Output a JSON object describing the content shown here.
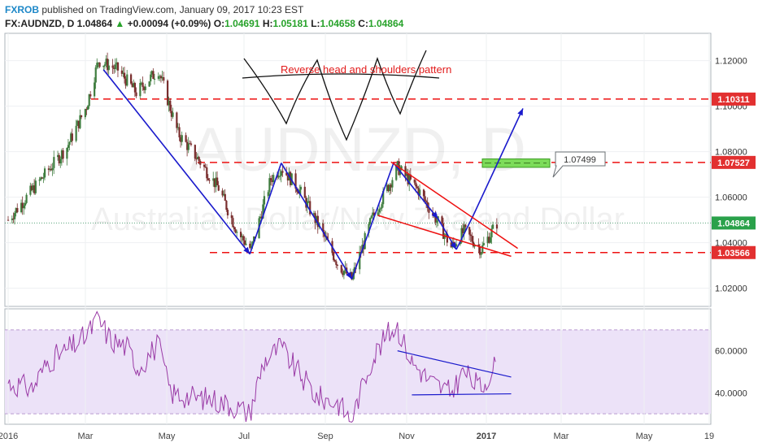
{
  "header": {
    "author": "FXROB",
    "published_text": "published on TradingView.com, January 09, 2017 10:23 EST",
    "symbol": "FX:AUDNZD, D",
    "last": "1.04864",
    "arrow": "▲",
    "change": "+0.00094 (+0.09%)",
    "o_label": "O:",
    "o_value": "1.04691",
    "h_label": "H:",
    "h_value": "1.05181",
    "l_label": "L:",
    "l_value": "1.04658",
    "c_label": "C:",
    "c_value": "1.04864"
  },
  "watermark": {
    "symbol": "AUDNZD, D",
    "name": "Australian Dollar/New Zealand Dollar"
  },
  "annotations": {
    "pattern_text": "Reverse head and  shoulders pattern",
    "target_callout": "1.07499"
  },
  "colors": {
    "bull": "#3f7d3f",
    "bear": "#7a2e2e",
    "trend": "#1a1acc",
    "level": "#ee1111",
    "wedge": "#ee1111",
    "rsi_line": "#9a3aa6",
    "rsi_band": "#ece2f8",
    "target_box": "#7ddc5a"
  },
  "chart_data": [
    {
      "type": "candlestick",
      "title": "FX:AUDNZD, D",
      "x_ticks": [
        "2016",
        "Mar",
        "May",
        "Jul",
        "Sep",
        "Nov",
        "2017",
        "Mar",
        "May",
        "19"
      ],
      "y_ticks": [
        "1.12000",
        "1.10000",
        "1.08000",
        "1.06000",
        "1.04000",
        "1.02000"
      ],
      "ylim": [
        1.012,
        1.132
      ],
      "grid": true,
      "price_labels": [
        {
          "value": 1.10311,
          "text": "1.10311",
          "kind": "level"
        },
        {
          "value": 1.07527,
          "text": "1.07527",
          "kind": "level"
        },
        {
          "value": 1.04864,
          "text": "1.04864",
          "kind": "last"
        },
        {
          "value": 1.03566,
          "text": "1.03566",
          "kind": "level"
        }
      ],
      "horizontal_levels": [
        1.10311,
        1.07527,
        1.03566
      ],
      "last_price": 1.04864,
      "target_zone": [
        1.0731,
        1.0768
      ],
      "path_points": [
        [
          "2016-01-01",
          1.05
        ],
        [
          "2016-01-15",
          1.06
        ],
        [
          "2016-02-01",
          1.072
        ],
        [
          "2016-02-15",
          1.082
        ],
        [
          "2016-03-01",
          1.1
        ],
        [
          "2016-03-10",
          1.12
        ],
        [
          "2016-03-25",
          1.116
        ],
        [
          "2016-04-08",
          1.106
        ],
        [
          "2016-04-25",
          1.116
        ],
        [
          "2016-05-10",
          1.088
        ],
        [
          "2016-05-25",
          1.077
        ],
        [
          "2016-06-10",
          1.064
        ],
        [
          "2016-06-25",
          1.044
        ],
        [
          "2016-07-05",
          1.037
        ],
        [
          "2016-07-20",
          1.068
        ],
        [
          "2016-07-28",
          1.073
        ],
        [
          "2016-08-10",
          1.064
        ],
        [
          "2016-08-25",
          1.048
        ],
        [
          "2016-09-10",
          1.03
        ],
        [
          "2016-09-20",
          1.024
        ],
        [
          "2016-10-05",
          1.05
        ],
        [
          "2016-10-25",
          1.073
        ],
        [
          "2016-11-10",
          1.063
        ],
        [
          "2016-11-25",
          1.049
        ],
        [
          "2016-12-05",
          1.038
        ],
        [
          "2016-12-15",
          1.045
        ],
        [
          "2016-12-28",
          1.037
        ],
        [
          "2017-01-09",
          1.0486
        ]
      ],
      "trend_lines": [
        {
          "from": [
            "2016-03-14",
            1.116
          ],
          "to": [
            "2016-07-04",
            1.035
          ],
          "color": "blue"
        },
        {
          "from": [
            "2016-07-04",
            1.035
          ],
          "to": [
            "2016-07-28",
            1.075
          ],
          "color": "blue"
        },
        {
          "from": [
            "2016-07-28",
            1.075
          ],
          "to": [
            "2016-09-20",
            1.024
          ],
          "color": "blue"
        },
        {
          "from": [
            "2016-09-20",
            1.024
          ],
          "to": [
            "2016-10-22",
            1.075
          ],
          "color": "blue"
        },
        {
          "from": [
            "2016-10-22",
            1.075
          ],
          "to": [
            "2016-11-25",
            1.0505
          ],
          "color": "blue"
        },
        {
          "from": [
            "2016-11-25",
            1.0505
          ],
          "to": [
            "2016-12-09",
            1.037
          ],
          "color": "blue"
        },
        {
          "from": [
            "2016-12-09",
            1.037
          ],
          "to": [
            "2016-12-22",
            1.052
          ],
          "color": "blue"
        },
        {
          "from": [
            "2016-12-22",
            1.052
          ],
          "to": [
            "2017-01-29",
            1.099
          ],
          "color": "blue"
        }
      ],
      "wedge_lines": [
        {
          "from": [
            "2016-10-20",
            1.0755
          ],
          "to": [
            "2017-01-25",
            1.0375
          ],
          "color": "red"
        },
        {
          "from": [
            "2016-10-10",
            1.052
          ],
          "to": [
            "2017-01-20",
            1.034
          ],
          "color": "red"
        }
      ]
    },
    {
      "type": "line",
      "title": "RSI",
      "y_ticks": [
        "60.0000",
        "40.0000"
      ],
      "ylim": [
        25,
        80
      ],
      "band": [
        30,
        70
      ],
      "points": [
        [
          "2016-01-01",
          45
        ],
        [
          "2016-01-20",
          42
        ],
        [
          "2016-02-01",
          55
        ],
        [
          "2016-02-15",
          60
        ],
        [
          "2016-03-01",
          67
        ],
        [
          "2016-03-10",
          75
        ],
        [
          "2016-03-20",
          65
        ],
        [
          "2016-04-01",
          62
        ],
        [
          "2016-04-10",
          52
        ],
        [
          "2016-04-25",
          63
        ],
        [
          "2016-05-05",
          40
        ],
        [
          "2016-05-20",
          38
        ],
        [
          "2016-06-05",
          37
        ],
        [
          "2016-06-25",
          33
        ],
        [
          "2016-07-04",
          30
        ],
        [
          "2016-07-15",
          55
        ],
        [
          "2016-07-28",
          62
        ],
        [
          "2016-08-10",
          50
        ],
        [
          "2016-08-25",
          38
        ],
        [
          "2016-09-10",
          35
        ],
        [
          "2016-09-20",
          27
        ],
        [
          "2016-10-05",
          55
        ],
        [
          "2016-10-18",
          68
        ],
        [
          "2016-10-25",
          72
        ],
        [
          "2016-11-05",
          55
        ],
        [
          "2016-11-20",
          45
        ],
        [
          "2016-12-05",
          40
        ],
        [
          "2016-12-15",
          50
        ],
        [
          "2016-12-28",
          42
        ],
        [
          "2017-01-09",
          54
        ]
      ],
      "trend_lines": [
        {
          "from": [
            "2016-10-25",
            60
          ],
          "to": [
            "2017-01-20",
            47.5
          ],
          "color": "blue"
        },
        {
          "from": [
            "2016-11-05",
            39
          ],
          "to": [
            "2017-01-20",
            39.5
          ],
          "color": "blue"
        }
      ]
    }
  ]
}
